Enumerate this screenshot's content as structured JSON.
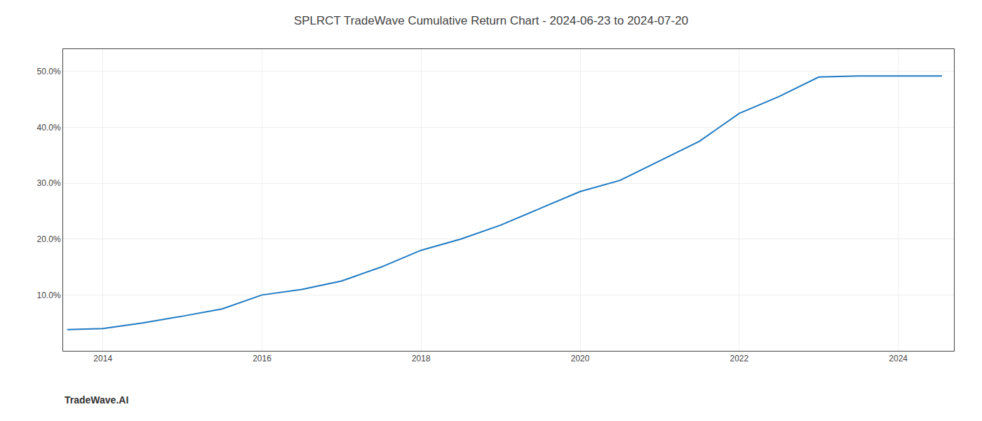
{
  "chart_data": {
    "type": "line",
    "title": "SPLRCT TradeWave Cumulative Return Chart - 2024-06-23 to 2024-07-20",
    "x": [
      2013.55,
      2014.0,
      2014.5,
      2015.0,
      2015.5,
      2016.0,
      2016.5,
      2017.0,
      2017.5,
      2018.0,
      2018.5,
      2019.0,
      2019.5,
      2020.0,
      2020.5,
      2021.0,
      2021.5,
      2022.0,
      2022.5,
      2023.0,
      2023.5,
      2024.0,
      2024.55
    ],
    "values": [
      3.8,
      4.0,
      5.0,
      6.2,
      7.5,
      10.0,
      11.0,
      12.5,
      15.0,
      18.0,
      20.0,
      22.5,
      25.5,
      28.5,
      30.5,
      34.0,
      37.5,
      42.5,
      45.5,
      49.0,
      49.2,
      49.2,
      49.2
    ],
    "color": "#1f7bc4",
    "xlim": [
      2013.5,
      2024.7
    ],
    "ylim": [
      0,
      54
    ],
    "xticks": [
      2014,
      2016,
      2018,
      2020,
      2022,
      2024
    ],
    "yticks": [
      {
        "value": 10.0,
        "label": "10.0%"
      },
      {
        "value": 20.0,
        "label": "20.0%"
      },
      {
        "value": 30.0,
        "label": "30.0%"
      },
      {
        "value": 40.0,
        "label": "40.0%"
      },
      {
        "value": 50.0,
        "label": "50.0%"
      }
    ],
    "grid": true,
    "annotations": [
      "TradeWave.AI"
    ]
  }
}
